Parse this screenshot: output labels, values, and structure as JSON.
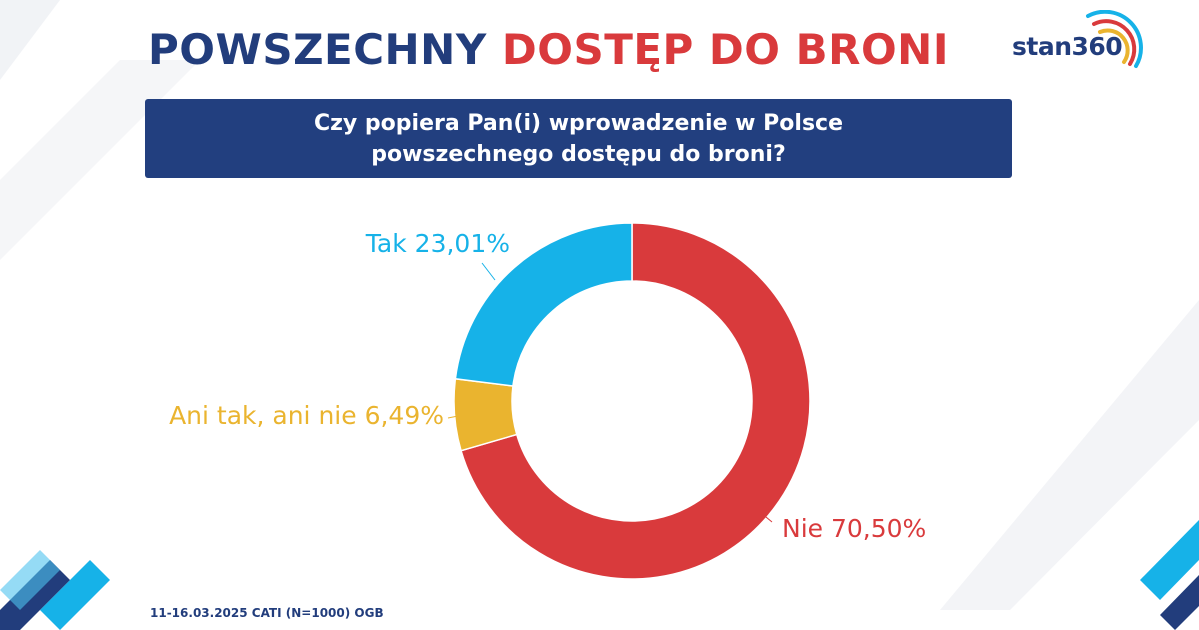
{
  "header": {
    "title_part1": "POWSZECHNY",
    "title_part2": "DOSTĘP DO BRONI",
    "logo_text": "stan360"
  },
  "question": {
    "line1": "Czy popiera Pan(i) wprowadzenie w Polsce",
    "line2": "powszechnego dostępu do broni?"
  },
  "chart_data": {
    "type": "pie",
    "donut": true,
    "title": "Czy popiera Pan(i) wprowadzenie w Polsce powszechnego dostępu do broni?",
    "slices": [
      {
        "label": "Nie",
        "value": 70.5,
        "display": "Nie 70,50%",
        "color": "#d93a3c"
      },
      {
        "label": "Ani tak, ani nie",
        "value": 6.49,
        "display": "Ani tak, ani nie 6,49%",
        "color": "#eab42f"
      },
      {
        "label": "Tak",
        "value": 23.01,
        "display": "Tak 23,01%",
        "color": "#16b2e8"
      }
    ],
    "legend": "none"
  },
  "footer": {
    "note": "11-16.03.2025 CATI (N=1000) OGB"
  },
  "colors": {
    "navy": "#223d7c",
    "red": "#d93a3c",
    "light_blue": "#16b2e8",
    "yellow": "#eab42f"
  }
}
